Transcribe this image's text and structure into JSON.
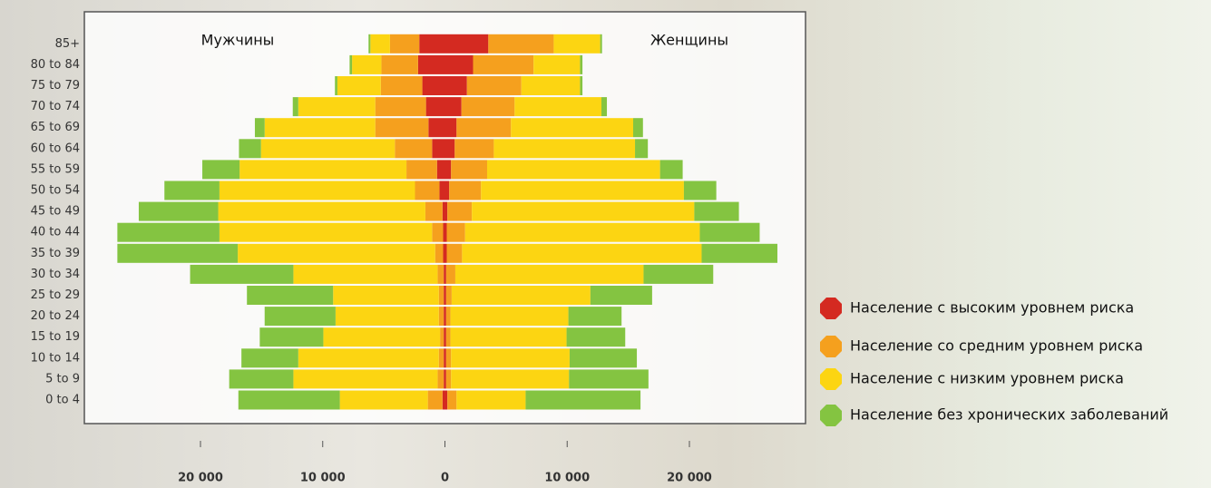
{
  "chart_data": {
    "type": "pyramid",
    "men_label": "Мужчины",
    "women_label": "Женщины",
    "categories": [
      "0 to 4",
      "5 to 9",
      "10 to 14",
      "15 to 19",
      "20 to 24",
      "25 to 29",
      "30 to 34",
      "35 to 39",
      "40 to 44",
      "45 to 49",
      "50 to 54",
      "55 to 59",
      "60 to 64",
      "65 to 69",
      "70 to 74",
      "75 to 79",
      "80 to 84",
      "85+"
    ],
    "series": [
      {
        "name": "Население с высоким уровнем риска",
        "color": "#d42a21",
        "men": [
          200,
          100,
          100,
          100,
          100,
          100,
          100,
          150,
          150,
          200,
          450,
          650,
          1050,
          1350,
          1550,
          1850,
          2200,
          2100
        ],
        "women": [
          200,
          100,
          100,
          100,
          100,
          100,
          100,
          150,
          150,
          200,
          350,
          500,
          800,
          950,
          1350,
          1800,
          2300,
          3550
        ]
      },
      {
        "name": "Население со средним уровнем риска",
        "color": "#f5a01e",
        "men": [
          1200,
          500,
          400,
          300,
          400,
          400,
          500,
          650,
          900,
          1400,
          2000,
          2500,
          3050,
          4350,
          4150,
          3400,
          3000,
          2400
        ],
        "women": [
          750,
          400,
          400,
          350,
          350,
          450,
          750,
          1250,
          1500,
          2000,
          2600,
          2950,
          3200,
          4450,
          4350,
          4450,
          4950,
          5350
        ]
      },
      {
        "name": "Население с низким уровнем риска",
        "color": "#fcd512",
        "men": [
          7200,
          11800,
          11500,
          9550,
          8450,
          8650,
          11800,
          16150,
          17400,
          16950,
          16000,
          13650,
          10950,
          9050,
          6300,
          3550,
          2400,
          1600
        ],
        "women": [
          5650,
          9650,
          9700,
          9500,
          9650,
          11350,
          15400,
          19600,
          19200,
          18200,
          16600,
          14150,
          11550,
          10000,
          7100,
          4800,
          3800,
          3800
        ]
      },
      {
        "name": "Население без хронических заболеваний",
        "color": "#84c441",
        "men": [
          8300,
          5250,
          4650,
          5200,
          5800,
          7050,
          8450,
          9850,
          8350,
          6500,
          4500,
          3050,
          1800,
          800,
          450,
          200,
          200,
          150
        ],
        "women": [
          9400,
          6500,
          5500,
          4800,
          4350,
          5050,
          5700,
          6200,
          4900,
          3650,
          2650,
          1850,
          1050,
          800,
          450,
          200,
          200,
          150
        ]
      }
    ],
    "xlim": [
      -29500,
      29500
    ],
    "xticks": [
      {
        "value": -20000,
        "label": "20 000"
      },
      {
        "value": -10000,
        "label": "10 000"
      },
      0,
      {
        "value": 10000,
        "label": "10 000"
      },
      {
        "value": 20000,
        "label": "20 000"
      }
    ]
  }
}
